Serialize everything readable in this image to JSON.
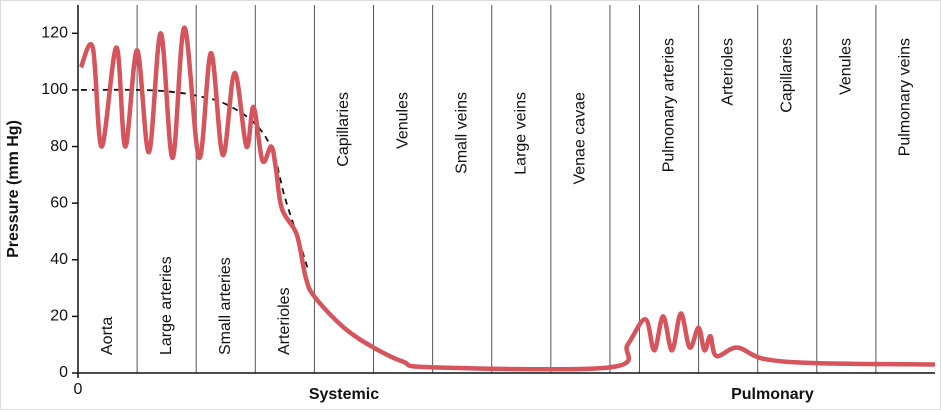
{
  "chart_data": {
    "type": "line",
    "ylabel": "Pressure (mm Hg)",
    "xlim": [
      0,
      14.5
    ],
    "ylim": [
      0,
      130
    ],
    "yticks": [
      0,
      20,
      40,
      60,
      80,
      100,
      120
    ],
    "xticks": [
      0
    ],
    "region_bounds": [
      1,
      2,
      3,
      4,
      5,
      6,
      7,
      8,
      9,
      9.5,
      10.5,
      11.5,
      12.5,
      13.5
    ],
    "region_labels": [
      "Aorta",
      "Large arteries",
      "Small arteries",
      "Arterioles",
      "Capillaries",
      "Venules",
      "Small veins",
      "Large veins",
      "Venae cavae",
      null,
      "Pulmonary arteries",
      "Arterioles",
      "Capillaries",
      "Venules",
      "Pulmonary veins"
    ],
    "groups": [
      {
        "label": "Systemic",
        "start": 0,
        "end": 9
      },
      {
        "label": "Pulmonary",
        "start": 9,
        "end": 14.5
      }
    ],
    "series": [
      {
        "color": "#d6545c",
        "style": "solid",
        "x": [
          0.05,
          0.25,
          0.4,
          0.65,
          0.8,
          1.0,
          1.2,
          1.4,
          1.6,
          1.8,
          2.05,
          2.25,
          2.45,
          2.65,
          2.85,
          2.97,
          3.12,
          3.27,
          3.35,
          3.45,
          3.7,
          3.85,
          4.0,
          4.5,
          5.0,
          5.5,
          6.0,
          9.0,
          9.3,
          9.6,
          9.75,
          9.9,
          10.05,
          10.2,
          10.35,
          10.5,
          10.6,
          10.7,
          10.8,
          11.15,
          11.6,
          12.5,
          14.5
        ],
        "values": [
          108,
          115,
          80,
          115,
          80,
          114,
          78,
          120,
          76,
          122,
          76,
          113,
          77,
          106,
          80,
          94,
          75,
          80,
          72,
          58,
          49,
          34,
          27,
          16,
          9,
          4,
          2,
          2,
          10,
          19,
          8,
          20,
          8,
          21,
          9,
          16,
          8,
          13,
          6,
          9,
          5,
          3.5,
          3
        ]
      },
      {
        "color": "#111111",
        "style": "dashed",
        "x": [
          0.05,
          1.0,
          1.5,
          2.0,
          2.5,
          3.0,
          3.3,
          3.5,
          3.75,
          3.9
        ],
        "values": [
          100,
          100,
          99.5,
          98,
          95,
          88,
          78,
          62,
          46,
          36
        ]
      }
    ]
  }
}
